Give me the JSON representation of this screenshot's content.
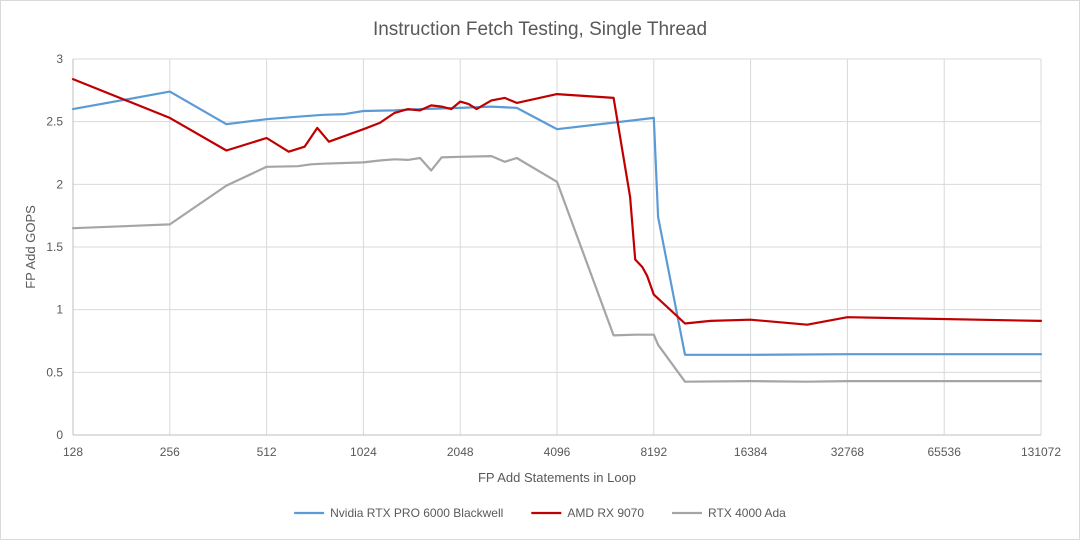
{
  "chart_data": {
    "type": "line",
    "title": "Instruction Fetch Testing, Single Thread",
    "xlabel": "FP Add Statements in Loop",
    "ylabel": "FP Add GOPS",
    "x_scale": "log2",
    "xlim": [
      128,
      131072
    ],
    "ylim": [
      0,
      3
    ],
    "x_ticks": [
      128,
      256,
      512,
      1024,
      2048,
      4096,
      8192,
      16384,
      32768,
      65536,
      131072
    ],
    "x_tick_labels": [
      "128",
      "256",
      "512",
      "1024",
      "2048",
      "4096",
      "8192",
      "16384",
      "32768",
      "65536",
      "131072"
    ],
    "y_ticks": [
      0,
      0.5,
      1,
      1.5,
      2,
      2.5,
      3
    ],
    "y_tick_labels": [
      "0",
      "0.5",
      "1",
      "1.5",
      "2",
      "2.5",
      "3"
    ],
    "grid": "vertical and horizontal",
    "legend_position": "bottom",
    "series": [
      {
        "name": "Nvidia RTX PRO 6000 Blackwell",
        "color": "#5b9bd5",
        "points": [
          [
            128,
            2.6
          ],
          [
            256,
            2.74
          ],
          [
            384,
            2.48
          ],
          [
            512,
            2.52
          ],
          [
            640,
            2.54
          ],
          [
            768,
            2.555
          ],
          [
            896,
            2.56
          ],
          [
            1024,
            2.585
          ],
          [
            1280,
            2.59
          ],
          [
            1536,
            2.6
          ],
          [
            2048,
            2.61
          ],
          [
            2560,
            2.62
          ],
          [
            3072,
            2.61
          ],
          [
            4096,
            2.44
          ],
          [
            8192,
            2.53
          ],
          [
            8448,
            1.74
          ],
          [
            10240,
            0.64
          ],
          [
            16384,
            0.64
          ],
          [
            32768,
            0.645
          ],
          [
            131072,
            0.645
          ]
        ]
      },
      {
        "name": "AMD RX 9070",
        "color": "#c00000",
        "points": [
          [
            128,
            2.84
          ],
          [
            256,
            2.53
          ],
          [
            384,
            2.27
          ],
          [
            512,
            2.37
          ],
          [
            600,
            2.26
          ],
          [
            672,
            2.3
          ],
          [
            736,
            2.45
          ],
          [
            800,
            2.34
          ],
          [
            1024,
            2.44
          ],
          [
            1152,
            2.49
          ],
          [
            1280,
            2.57
          ],
          [
            1408,
            2.6
          ],
          [
            1536,
            2.59
          ],
          [
            1664,
            2.63
          ],
          [
            1792,
            2.62
          ],
          [
            1920,
            2.6
          ],
          [
            2048,
            2.66
          ],
          [
            2176,
            2.64
          ],
          [
            2304,
            2.6
          ],
          [
            2560,
            2.67
          ],
          [
            2816,
            2.69
          ],
          [
            3072,
            2.65
          ],
          [
            4096,
            2.72
          ],
          [
            6144,
            2.69
          ],
          [
            6912,
            1.9
          ],
          [
            7168,
            1.4
          ],
          [
            7552,
            1.34
          ],
          [
            7808,
            1.27
          ],
          [
            8192,
            1.12
          ],
          [
            10240,
            0.89
          ],
          [
            12288,
            0.91
          ],
          [
            16384,
            0.92
          ],
          [
            24576,
            0.88
          ],
          [
            32768,
            0.94
          ],
          [
            131072,
            0.91
          ]
        ]
      },
      {
        "name": "RTX 4000 Ada",
        "color": "#a5a5a5",
        "points": [
          [
            128,
            1.65
          ],
          [
            256,
            1.68
          ],
          [
            384,
            1.99
          ],
          [
            512,
            2.14
          ],
          [
            640,
            2.145
          ],
          [
            704,
            2.16
          ],
          [
            768,
            2.165
          ],
          [
            1024,
            2.175
          ],
          [
            1152,
            2.19
          ],
          [
            1280,
            2.2
          ],
          [
            1408,
            2.195
          ],
          [
            1536,
            2.21
          ],
          [
            1664,
            2.11
          ],
          [
            1792,
            2.215
          ],
          [
            2048,
            2.22
          ],
          [
            2560,
            2.225
          ],
          [
            2816,
            2.18
          ],
          [
            3072,
            2.21
          ],
          [
            4096,
            2.02
          ],
          [
            6144,
            0.795
          ],
          [
            7168,
            0.8
          ],
          [
            8192,
            0.8
          ],
          [
            8448,
            0.72
          ],
          [
            10240,
            0.425
          ],
          [
            16384,
            0.43
          ],
          [
            24576,
            0.425
          ],
          [
            32768,
            0.43
          ],
          [
            131072,
            0.43
          ]
        ]
      }
    ]
  }
}
